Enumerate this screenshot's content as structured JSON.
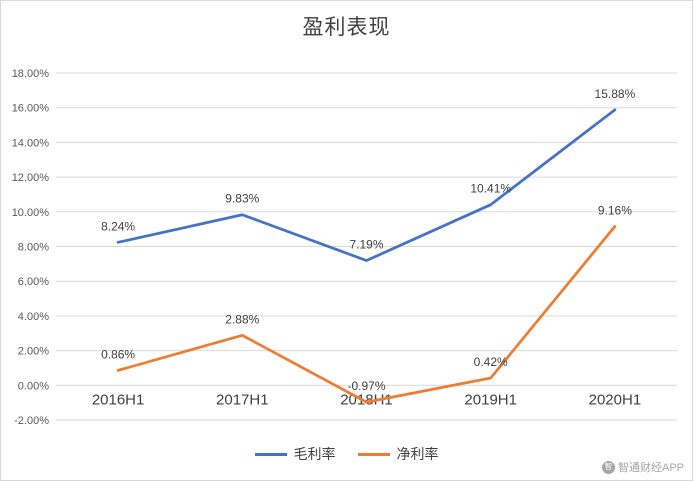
{
  "title": "盈利表现",
  "chart_data": {
    "type": "line",
    "categories": [
      "2016H1",
      "2017H1",
      "2018H1",
      "2019H1",
      "2020H1"
    ],
    "series": [
      {
        "name": "毛利率",
        "color": "#4472c4",
        "values": [
          8.24,
          9.83,
          7.19,
          10.41,
          15.88
        ],
        "data_labels": [
          "8.24%",
          "9.83%",
          "7.19%",
          "10.41%",
          "15.88%"
        ]
      },
      {
        "name": "净利率",
        "color": "#ed7d31",
        "values": [
          0.86,
          2.88,
          -0.97,
          0.42,
          9.16
        ],
        "data_labels": [
          "0.86%",
          "2.88%",
          "-0.97%",
          "0.42%",
          "9.16%"
        ]
      }
    ],
    "ylim": [
      -2,
      18
    ],
    "ytick_step": 2,
    "ytick_labels": [
      "18.00%",
      "16.00%",
      "14.00%",
      "12.00%",
      "10.00%",
      "8.00%",
      "6.00%",
      "4.00%",
      "2.00%",
      "0.00%",
      "-2.00%"
    ],
    "grid": true,
    "legend_position": "bottom",
    "colors": {
      "grid": "#d9d9d9",
      "axis_text": "#595959",
      "category_text": "#404040",
      "data_label_text": "#404040"
    }
  },
  "watermark": {
    "icon_glyph": "智",
    "text": "智通财经APP"
  }
}
